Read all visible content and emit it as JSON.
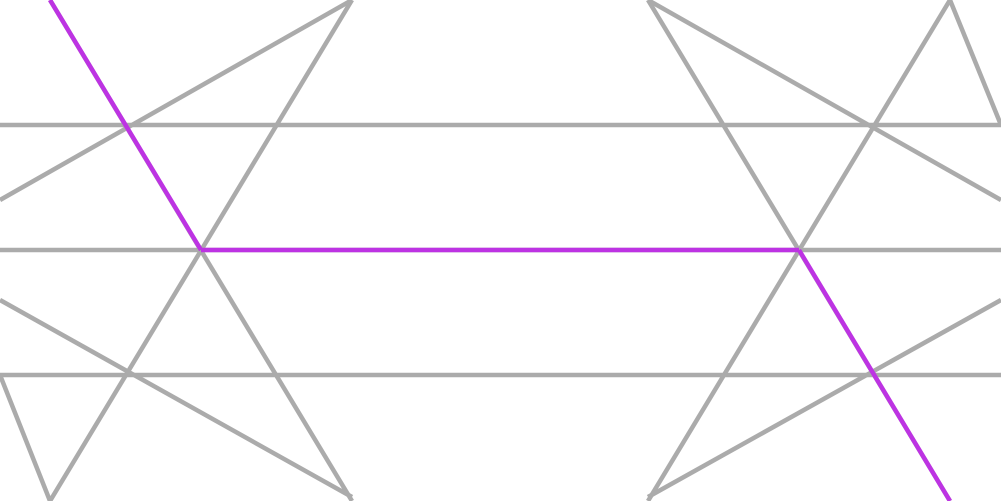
{
  "diagram": {
    "kind": "line-arrangement",
    "colors": {
      "background": "#ffffff",
      "line": "#ababab",
      "highlight": "#bd33e3"
    },
    "line_count": 12,
    "highlighted_path": {
      "description_shape": "zigzag",
      "segment_count": 3
    }
  }
}
